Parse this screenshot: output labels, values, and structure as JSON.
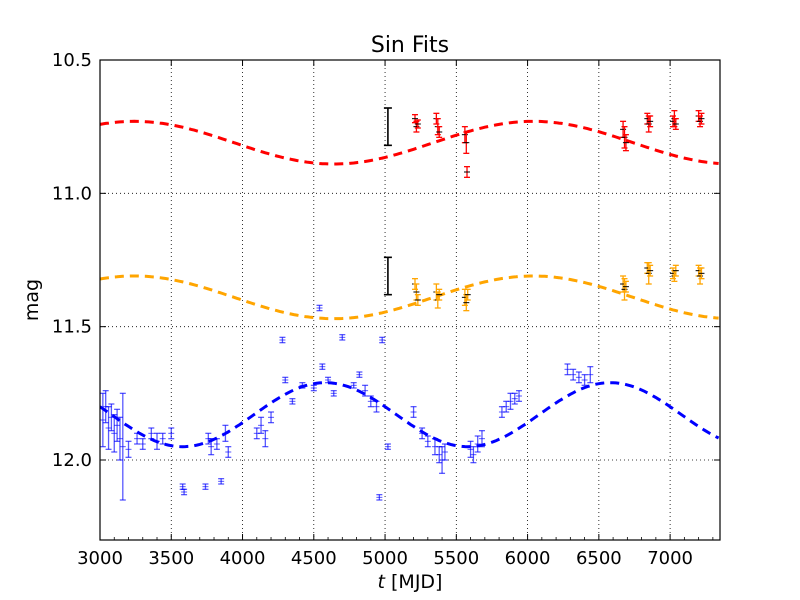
{
  "chart_data": {
    "type": "line",
    "title": "Sin Fits",
    "xlabel_symbol": "t",
    "xlabel_rest": " [MJD]",
    "ylabel": "mag",
    "xlim": [
      3000,
      7350
    ],
    "ylim": [
      12.3,
      10.5
    ],
    "y_inverted": true,
    "grid": true,
    "xticks": [
      3000,
      3500,
      4000,
      4500,
      5000,
      5500,
      6000,
      6500,
      7000
    ],
    "xtick_labels": [
      "3000",
      "3500",
      "4000",
      "4500",
      "5000",
      "5500",
      "6000",
      "6500",
      "7000"
    ],
    "yticks": [
      10.5,
      11.0,
      11.5,
      12.0
    ],
    "ytick_labels": [
      "10.5",
      "11.0",
      "11.5",
      "12.0"
    ],
    "fit_curves": [
      {
        "color": "#ff0000",
        "mean": 10.81,
        "amplitude": 0.08,
        "period": 2800,
        "phase_peak": 3240
      },
      {
        "color": "#ffa500",
        "mean": 11.39,
        "amplitude": 0.08,
        "period": 2800,
        "phase_peak": 3240
      },
      {
        "color": "#0000ff",
        "mean": 11.83,
        "amplitude": 0.12,
        "period": 2000,
        "phase_peak": 4580
      }
    ],
    "series": [
      {
        "color": "#ff0000",
        "points": [
          [
            5210,
            10.72,
            0.015
          ],
          [
            5220,
            10.75,
            0.02
          ],
          [
            5230,
            10.74,
            0.015
          ],
          [
            5360,
            10.72,
            0.02
          ],
          [
            5370,
            10.75,
            0.03
          ],
          [
            5380,
            10.77,
            0.02
          ],
          [
            5560,
            10.78,
            0.03
          ],
          [
            5570,
            10.81,
            0.04
          ],
          [
            5575,
            10.92,
            0.02
          ],
          [
            6670,
            10.76,
            0.03
          ],
          [
            6680,
            10.79,
            0.04
          ],
          [
            6690,
            10.81,
            0.03
          ],
          [
            6840,
            10.72,
            0.02
          ],
          [
            6850,
            10.74,
            0.03
          ],
          [
            6860,
            10.73,
            0.02
          ],
          [
            7020,
            10.73,
            0.02
          ],
          [
            7030,
            10.72,
            0.03
          ],
          [
            7040,
            10.74,
            0.02
          ],
          [
            7200,
            10.71,
            0.02
          ],
          [
            7210,
            10.73,
            0.02
          ],
          [
            7220,
            10.72,
            0.02
          ]
        ]
      },
      {
        "color": "#ffa500",
        "points": [
          [
            5210,
            11.34,
            0.02
          ],
          [
            5220,
            11.37,
            0.03
          ],
          [
            5230,
            11.4,
            0.02
          ],
          [
            5360,
            11.37,
            0.03
          ],
          [
            5370,
            11.4,
            0.03
          ],
          [
            5380,
            11.38,
            0.02
          ],
          [
            5560,
            11.39,
            0.03
          ],
          [
            5570,
            11.41,
            0.03
          ],
          [
            5580,
            11.38,
            0.02
          ],
          [
            6670,
            11.34,
            0.03
          ],
          [
            6680,
            11.36,
            0.04
          ],
          [
            6690,
            11.35,
            0.02
          ],
          [
            6840,
            11.28,
            0.02
          ],
          [
            6850,
            11.3,
            0.04
          ],
          [
            6860,
            11.29,
            0.02
          ],
          [
            7020,
            11.3,
            0.02
          ],
          [
            7030,
            11.31,
            0.02
          ],
          [
            7040,
            11.29,
            0.02
          ],
          [
            7200,
            11.29,
            0.02
          ],
          [
            7210,
            11.31,
            0.03
          ],
          [
            7220,
            11.3,
            0.02
          ]
        ]
      },
      {
        "color": "#0000ff",
        "points": [
          [
            3020,
            11.85,
            0.1
          ],
          [
            3040,
            11.8,
            0.06
          ],
          [
            3060,
            11.88,
            0.08
          ],
          [
            3080,
            11.84,
            0.05
          ],
          [
            3100,
            11.9,
            0.07
          ],
          [
            3120,
            11.87,
            0.06
          ],
          [
            3140,
            11.92,
            0.08
          ],
          [
            3160,
            11.95,
            0.2
          ],
          [
            3200,
            11.96,
            0.03
          ],
          [
            3260,
            11.92,
            0.02
          ],
          [
            3300,
            11.94,
            0.02
          ],
          [
            3360,
            11.9,
            0.02
          ],
          [
            3400,
            11.93,
            0.03
          ],
          [
            3440,
            11.92,
            0.02
          ],
          [
            3500,
            11.9,
            0.02
          ],
          [
            3580,
            12.1,
            0.01
          ],
          [
            3590,
            12.12,
            0.01
          ],
          [
            3740,
            12.1,
            0.01
          ],
          [
            3760,
            11.92,
            0.02
          ],
          [
            3780,
            11.95,
            0.03
          ],
          [
            3820,
            11.94,
            0.02
          ],
          [
            3850,
            12.08,
            0.01
          ],
          [
            3880,
            11.9,
            0.03
          ],
          [
            3900,
            11.97,
            0.02
          ],
          [
            4100,
            11.9,
            0.02
          ],
          [
            4130,
            11.87,
            0.03
          ],
          [
            4160,
            11.92,
            0.03
          ],
          [
            4200,
            11.84,
            0.02
          ],
          [
            4280,
            11.55,
            0.01
          ],
          [
            4300,
            11.7,
            0.01
          ],
          [
            4350,
            11.78,
            0.01
          ],
          [
            4420,
            11.72,
            0.01
          ],
          [
            4500,
            11.73,
            0.01
          ],
          [
            4540,
            11.43,
            0.01
          ],
          [
            4560,
            11.65,
            0.01
          ],
          [
            4600,
            11.7,
            0.01
          ],
          [
            4640,
            11.75,
            0.01
          ],
          [
            4700,
            11.54,
            0.01
          ],
          [
            4780,
            11.72,
            0.01
          ],
          [
            4820,
            11.68,
            0.01
          ],
          [
            4860,
            11.74,
            0.02
          ],
          [
            4900,
            11.78,
            0.02
          ],
          [
            4940,
            11.8,
            0.02
          ],
          [
            4980,
            11.55,
            0.01
          ],
          [
            4960,
            12.14,
            0.01
          ],
          [
            5020,
            11.95,
            0.01
          ],
          [
            5200,
            11.82,
            0.02
          ],
          [
            5260,
            11.9,
            0.02
          ],
          [
            5300,
            11.93,
            0.02
          ],
          [
            5350,
            11.95,
            0.03
          ],
          [
            5380,
            11.98,
            0.03
          ],
          [
            5400,
            12.0,
            0.05
          ],
          [
            5420,
            11.97,
            0.03
          ],
          [
            5600,
            11.96,
            0.03
          ],
          [
            5620,
            11.98,
            0.03
          ],
          [
            5650,
            11.94,
            0.03
          ],
          [
            5680,
            11.92,
            0.03
          ],
          [
            5820,
            11.82,
            0.02
          ],
          [
            5850,
            11.8,
            0.02
          ],
          [
            5880,
            11.78,
            0.03
          ],
          [
            5910,
            11.77,
            0.02
          ],
          [
            5940,
            11.76,
            0.02
          ],
          [
            6280,
            11.66,
            0.02
          ],
          [
            6320,
            11.68,
            0.02
          ],
          [
            6360,
            11.69,
            0.02
          ],
          [
            6400,
            11.7,
            0.02
          ],
          [
            6440,
            11.68,
            0.03
          ]
        ]
      }
    ],
    "reference_bars": [
      {
        "color": "#000000",
        "x": 5020,
        "y": 10.75,
        "err": 0.07
      },
      {
        "color": "#000000",
        "x": 5020,
        "y": 11.31,
        "err": 0.07
      }
    ]
  }
}
